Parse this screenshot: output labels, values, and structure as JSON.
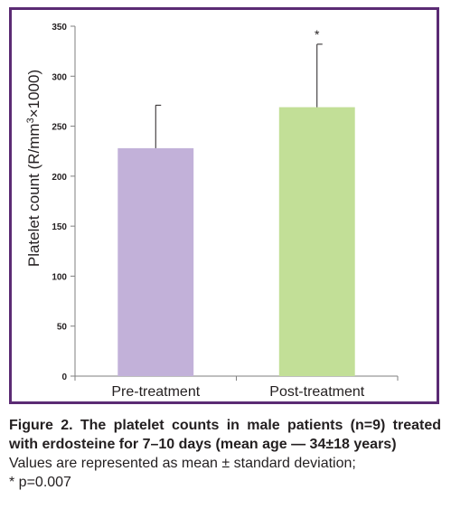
{
  "chart_data": {
    "type": "bar",
    "categories": [
      "Pre-treatment",
      "Post-treatment"
    ],
    "values": [
      228,
      269
    ],
    "errors_plus_sd": [
      43,
      63
    ],
    "bar_colors": [
      "#c2b1d9",
      "#c2df97"
    ],
    "significance_markers": [
      "",
      "*"
    ],
    "ylabel_prefix": "Platelet count (R/mm",
    "ylabel_sup": "3",
    "ylabel_suffix": "×1000)",
    "ylim": [
      0,
      350
    ],
    "yticks": [
      0,
      50,
      100,
      150,
      200,
      250,
      300,
      350
    ],
    "grid": false,
    "legend": "none"
  },
  "caption": {
    "title": "Figure 2. The platelet counts in male patients (n=9) treated with erdosteine for 7–10 days (mean age — 34±18 years)",
    "note_line1": "Values are represented as mean ± standard deviation;",
    "note_line2": "* p=0.007"
  },
  "colors": {
    "frame": "#5b2b74",
    "axis": "#7f7f7f",
    "text": "#231f20"
  }
}
